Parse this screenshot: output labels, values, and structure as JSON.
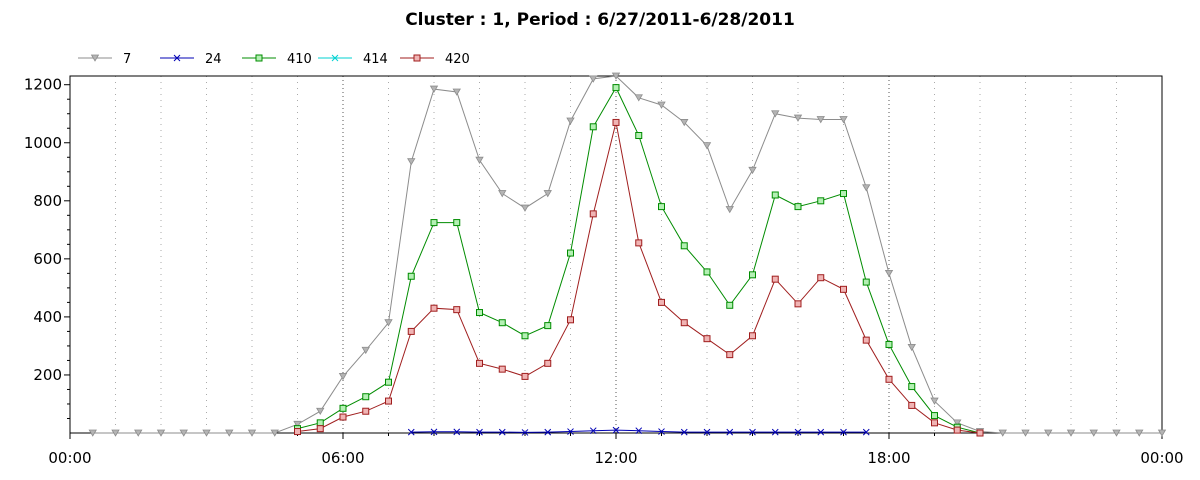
{
  "chart_data": {
    "type": "line",
    "title": "Cluster : 1, Period : 6/27/2011-6/28/2011",
    "xlabel": "",
    "ylabel": "",
    "x_unit": "hour of day",
    "xlim": [
      0,
      24
    ],
    "ylim": [
      0,
      1230
    ],
    "x_ticks": [
      {
        "value": 0,
        "label": "00:00"
      },
      {
        "value": 6,
        "label": "06:00"
      },
      {
        "value": 12,
        "label": "12:00"
      },
      {
        "value": 18,
        "label": "18:00"
      },
      {
        "value": 24,
        "label": "00:00"
      }
    ],
    "y_ticks": [
      {
        "value": 200,
        "label": "200"
      },
      {
        "value": 400,
        "label": "400"
      },
      {
        "value": 600,
        "label": "600"
      },
      {
        "value": 800,
        "label": "800"
      },
      {
        "value": 1000,
        "label": "1000"
      },
      {
        "value": 1200,
        "label": "1200"
      }
    ],
    "grid": true,
    "legend_position": "top-left",
    "x": [
      0.5,
      1.0,
      1.5,
      2.0,
      2.5,
      3.0,
      3.5,
      4.0,
      4.5,
      5.0,
      5.5,
      6.0,
      6.5,
      7.0,
      7.5,
      8.0,
      8.5,
      9.0,
      9.5,
      10.0,
      10.5,
      11.0,
      11.5,
      12.0,
      12.5,
      13.0,
      13.5,
      14.0,
      14.5,
      15.0,
      15.5,
      16.0,
      16.5,
      17.0,
      17.5,
      18.0,
      18.5,
      19.0,
      19.5,
      20.0,
      20.5,
      21.0,
      21.5,
      22.0,
      22.5,
      23.0,
      23.5,
      24.0
    ],
    "series": [
      {
        "name": "7",
        "color": "#8c8c8c",
        "marker": "triangle-down",
        "values": [
          0,
          0,
          0,
          0,
          0,
          0,
          0,
          0,
          0,
          30,
          75,
          195,
          285,
          380,
          935,
          1185,
          1175,
          940,
          825,
          775,
          825,
          1075,
          1220,
          1230,
          1155,
          1130,
          1070,
          990,
          770,
          905,
          1100,
          1085,
          1080,
          1080,
          845,
          550,
          295,
          110,
          35,
          5,
          0,
          0,
          0,
          0,
          0,
          0,
          0,
          0
        ]
      },
      {
        "name": "24",
        "color": "#0000b4",
        "marker": "x",
        "values": [
          null,
          null,
          null,
          null,
          null,
          null,
          null,
          null,
          null,
          null,
          null,
          null,
          null,
          null,
          3,
          4,
          4,
          3,
          3,
          2,
          3,
          5,
          8,
          10,
          8,
          5,
          3,
          3,
          3,
          3,
          3,
          3,
          3,
          3,
          3,
          null,
          null,
          null,
          null,
          null,
          null,
          null,
          null,
          null,
          null,
          null,
          null,
          null
        ]
      },
      {
        "name": "410",
        "color": "#008c00",
        "marker": "square",
        "values": [
          null,
          null,
          null,
          null,
          null,
          null,
          null,
          null,
          null,
          15,
          35,
          85,
          125,
          175,
          540,
          725,
          725,
          415,
          380,
          335,
          370,
          620,
          1055,
          1190,
          1025,
          780,
          645,
          555,
          440,
          545,
          820,
          780,
          800,
          825,
          520,
          305,
          160,
          60,
          20,
          0,
          null,
          null,
          null,
          null,
          null,
          null,
          null,
          null
        ]
      },
      {
        "name": "414",
        "color": "#00d2d2",
        "marker": "x",
        "values": [
          null,
          null,
          null,
          null,
          null,
          null,
          null,
          null,
          null,
          null,
          null,
          null,
          null,
          null,
          null,
          null,
          null,
          null,
          null,
          null,
          null,
          null,
          null,
          null,
          null,
          null,
          null,
          null,
          null,
          null,
          null,
          null,
          null,
          null,
          null,
          null,
          null,
          null,
          null,
          null,
          null,
          null,
          null,
          null,
          null,
          null,
          null,
          null
        ]
      },
      {
        "name": "420",
        "color": "#a01e1e",
        "marker": "square",
        "values": [
          null,
          null,
          null,
          null,
          null,
          null,
          null,
          null,
          null,
          5,
          15,
          55,
          75,
          110,
          350,
          430,
          425,
          240,
          220,
          195,
          240,
          390,
          755,
          1070,
          655,
          450,
          380,
          325,
          270,
          335,
          530,
          445,
          535,
          495,
          320,
          185,
          95,
          35,
          10,
          0,
          null,
          null,
          null,
          null,
          null,
          null,
          null,
          null
        ]
      }
    ]
  }
}
